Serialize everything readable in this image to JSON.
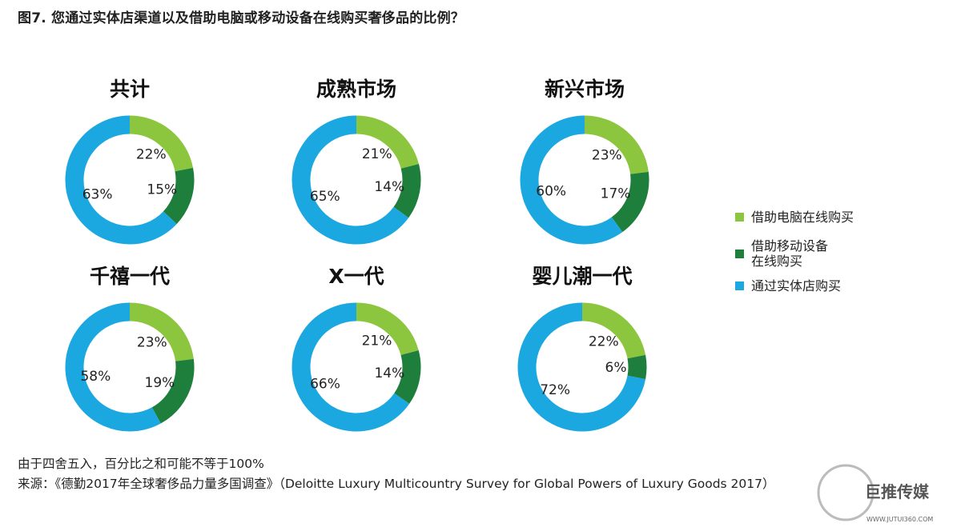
{
  "title": "图7. 您通过实体店渠道以及借助电脑或移动设备在线购买奢侈品的比例？",
  "colors": {
    "online_computer": "#8cc63f",
    "online_mobile": "#1e7e3c",
    "in_store": "#1ba8e0"
  },
  "legend": [
    {
      "label": "借助电脑在线购买",
      "color": "#8cc63f"
    },
    {
      "label": "借助移动设备在线购买",
      "color": "#1e7e3c"
    },
    {
      "label": "通过实体店购买",
      "color": "#1ba8e0"
    }
  ],
  "legend_display": {
    "item1": "借助电脑在线购买",
    "item2_line1": "借助移动设备",
    "item2_line2": "在线购买",
    "item3": "通过实体店购买"
  },
  "chart_data": [
    {
      "type": "pie",
      "title": "共计",
      "categories": [
        "借助电脑在线购买",
        "借助移动设备在线购买",
        "通过实体店购买"
      ],
      "values": [
        22,
        15,
        63
      ],
      "labels": [
        "22%",
        "15%",
        "63%"
      ]
    },
    {
      "type": "pie",
      "title": "成熟市场",
      "categories": [
        "借助电脑在线购买",
        "借助移动设备在线购买",
        "通过实体店购买"
      ],
      "values": [
        21,
        14,
        65
      ],
      "labels": [
        "21%",
        "14%",
        "65%"
      ]
    },
    {
      "type": "pie",
      "title": "新兴市场",
      "categories": [
        "借助电脑在线购买",
        "借助移动设备在线购买",
        "通过实体店购买"
      ],
      "values": [
        23,
        17,
        60
      ],
      "labels": [
        "23%",
        "17%",
        "60%"
      ]
    },
    {
      "type": "pie",
      "title": "千禧一代",
      "categories": [
        "借助电脑在线购买",
        "借助移动设备在线购买",
        "通过实体店购买"
      ],
      "values": [
        23,
        19,
        58
      ],
      "labels": [
        "23%",
        "19%",
        "58%"
      ]
    },
    {
      "type": "pie",
      "title": "X一代",
      "categories": [
        "借助电脑在线购买",
        "借助移动设备在线购买",
        "通过实体店购买"
      ],
      "values": [
        21,
        14,
        66
      ],
      "labels": [
        "21%",
        "14%",
        "66%"
      ]
    },
    {
      "type": "pie",
      "title": "婴儿潮一代",
      "categories": [
        "借助电脑在线购买",
        "借助移动设备在线购买",
        "通过实体店购买"
      ],
      "values": [
        22,
        6,
        72
      ],
      "labels": [
        "22%",
        "6%",
        "72%"
      ]
    }
  ],
  "footnote": "由于四舍五入，百分比之和可能不等于100%",
  "source": "来源：《德勤2017年全球奢侈品力量多国调查》（Deloitte Luxury Multicountry Survey for Global Powers of Luxury Goods 2017）",
  "watermark": {
    "text": "巨推传媒",
    "url": "WWW.JUTUI360.COM"
  }
}
